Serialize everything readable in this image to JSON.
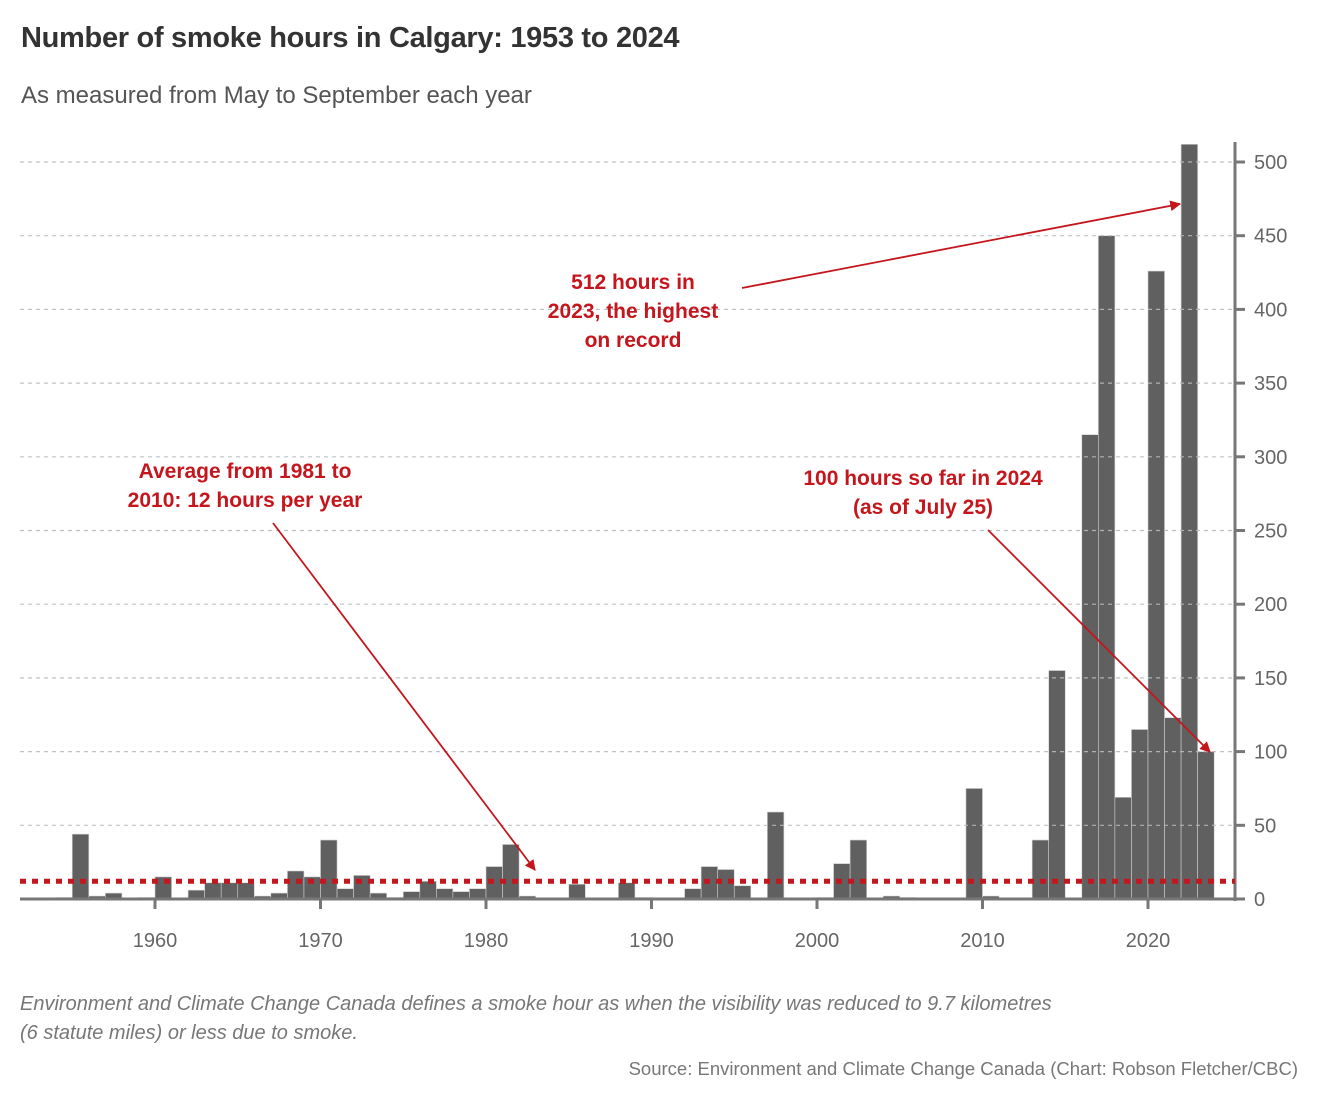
{
  "header": {
    "title": "Number of smoke hours in Calgary: 1953 to 2024",
    "subtitle": "As measured from May to September each year"
  },
  "chart_data": {
    "type": "bar",
    "title": "Number of smoke hours in Calgary: 1953 to 2024",
    "subtitle": "As measured from May to September each year",
    "xlabel": "",
    "ylabel": "",
    "x": [
      1953,
      1954,
      1955,
      1956,
      1957,
      1958,
      1959,
      1960,
      1961,
      1962,
      1963,
      1964,
      1965,
      1966,
      1967,
      1968,
      1969,
      1970,
      1971,
      1972,
      1973,
      1974,
      1975,
      1976,
      1977,
      1978,
      1979,
      1980,
      1981,
      1982,
      1983,
      1984,
      1985,
      1986,
      1987,
      1988,
      1989,
      1990,
      1991,
      1992,
      1993,
      1994,
      1995,
      1996,
      1997,
      1998,
      1999,
      2000,
      2001,
      2002,
      2003,
      2004,
      2005,
      2006,
      2007,
      2008,
      2009,
      2010,
      2011,
      2012,
      2013,
      2014,
      2015,
      2016,
      2017,
      2018,
      2019,
      2020,
      2021,
      2022,
      2023,
      2024
    ],
    "values": [
      0,
      0,
      1,
      44,
      2,
      4,
      0,
      1,
      15,
      0,
      6,
      11,
      11,
      11,
      2,
      4,
      19,
      15,
      40,
      7,
      16,
      4,
      1,
      5,
      12,
      7,
      5,
      7,
      22,
      37,
      2,
      0,
      0,
      10,
      0,
      0,
      11,
      1,
      0,
      0,
      7,
      22,
      20,
      9,
      0,
      59,
      0,
      0,
      1,
      24,
      40,
      0,
      2,
      1,
      0,
      0,
      0,
      75,
      2,
      0,
      0,
      40,
      155,
      0,
      315,
      450,
      69,
      115,
      426,
      123,
      512,
      100
    ],
    "xticks": [
      "1960",
      "1970",
      "1980",
      "1990",
      "2000",
      "2010",
      "2020"
    ],
    "yticks": [
      "0",
      "50",
      "100",
      "150",
      "200",
      "250",
      "300",
      "350",
      "400",
      "450",
      "500"
    ],
    "ylim": [
      0,
      515
    ],
    "xlim": [
      1953,
      2024
    ],
    "grid": "horizontal dashed",
    "y_axis_side": "right",
    "reference_line": {
      "value": 12,
      "style": "dotted"
    },
    "bar_color": "#606060",
    "annotation_color": "#c4161c",
    "annotations": [
      {
        "lines": [
          "512 hours in",
          "2023, the highest",
          "on record"
        ],
        "target_year": 2023
      },
      {
        "lines": [
          "Average from 1981 to",
          "2010: 12 hours per year"
        ],
        "target": "reference_line"
      },
      {
        "lines": [
          "100 hours so far in 2024",
          "(as of July 25)"
        ],
        "target_year": 2024
      }
    ]
  },
  "footer": {
    "note_lines": [
      "Environment and Climate Change Canada defines a smoke hour as when the visibility was reduced to 9.7 kilometres",
      "(6 statute miles) or less due to smoke."
    ],
    "source": "Source: Environment and Climate Change Canada (Chart: Robson Fletcher/CBC)"
  }
}
